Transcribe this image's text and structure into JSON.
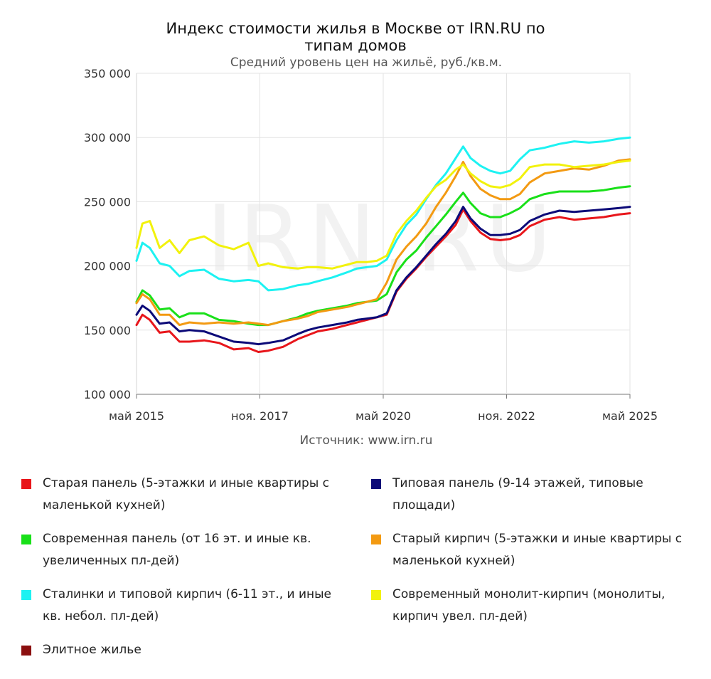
{
  "chart_data": {
    "type": "line",
    "title_lines": [
      "Индекс стоимости жилья в Москве от IRN.RU по",
      "типам домов"
    ],
    "subtitle": "Средний уровень цен на жильё, руб./кв.м.",
    "watermark": "IRN.RU",
    "source": "Источник: www.irn.ru",
    "ylim": [
      100000,
      350000
    ],
    "yticks": [
      100000,
      150000,
      200000,
      250000,
      300000,
      350000
    ],
    "ytick_labels": [
      "100 000",
      "150 000",
      "200 000",
      "250 000",
      "300 000",
      "350 000"
    ],
    "x_range": [
      2015.33,
      2025.33
    ],
    "xticks": [
      2015.33,
      2017.83,
      2020.33,
      2022.83,
      2025.33
    ],
    "xtick_labels": [
      "май 2015",
      "ноя. 2017",
      "май 2020",
      "ноя. 2022",
      "май 2025"
    ],
    "grid": true,
    "series": [
      {
        "name": "Старая панель (5-этажки и иные квартиры с маленькой кухней)",
        "color": "#e8161b",
        "x": [
          2015.33,
          2015.45,
          2015.6,
          2015.8,
          2016.0,
          2016.2,
          2016.4,
          2016.7,
          2017.0,
          2017.3,
          2017.6,
          2017.8,
          2018.0,
          2018.3,
          2018.6,
          2018.8,
          2019.0,
          2019.3,
          2019.6,
          2019.8,
          2020.0,
          2020.2,
          2020.4,
          2020.6,
          2020.8,
          2021.0,
          2021.2,
          2021.4,
          2021.6,
          2021.8,
          2021.95,
          2022.1,
          2022.3,
          2022.5,
          2022.7,
          2022.9,
          2023.1,
          2023.3,
          2023.6,
          2023.9,
          2024.2,
          2024.5,
          2024.8,
          2025.1,
          2025.33
        ],
        "y": [
          154000,
          162000,
          158000,
          148000,
          149000,
          141000,
          141000,
          142000,
          140000,
          135000,
          136000,
          133000,
          134000,
          137000,
          143000,
          146000,
          149000,
          151000,
          154000,
          156000,
          158000,
          160000,
          162000,
          180000,
          190000,
          198000,
          207000,
          215000,
          223000,
          232000,
          244000,
          235000,
          226000,
          221000,
          220000,
          221000,
          224000,
          231000,
          236000,
          238000,
          236000,
          237000,
          238000,
          240000,
          241000
        ]
      },
      {
        "name": "Типовая панель (9-14 этажей, типовые площади)",
        "color": "#0c0a78",
        "x": [
          2015.33,
          2015.45,
          2015.6,
          2015.8,
          2016.0,
          2016.2,
          2016.4,
          2016.7,
          2017.0,
          2017.3,
          2017.6,
          2017.8,
          2018.0,
          2018.3,
          2018.6,
          2018.8,
          2019.0,
          2019.3,
          2019.6,
          2019.8,
          2020.0,
          2020.2,
          2020.4,
          2020.6,
          2020.8,
          2021.0,
          2021.2,
          2021.4,
          2021.6,
          2021.8,
          2021.95,
          2022.1,
          2022.3,
          2022.5,
          2022.7,
          2022.9,
          2023.1,
          2023.3,
          2023.6,
          2023.9,
          2024.2,
          2024.5,
          2024.8,
          2025.1,
          2025.33
        ],
        "y": [
          162000,
          169000,
          165000,
          155000,
          156000,
          149000,
          150000,
          149000,
          145000,
          141000,
          140000,
          139000,
          140000,
          142000,
          147000,
          150000,
          152000,
          154000,
          156000,
          158000,
          159000,
          160000,
          163000,
          181000,
          191000,
          199000,
          208000,
          217000,
          225000,
          235000,
          246000,
          237000,
          229000,
          224000,
          224000,
          225000,
          228000,
          235000,
          240000,
          243000,
          242000,
          243000,
          244000,
          245000,
          246000
        ]
      },
      {
        "name": "Современная панель (от 16 эт. и иные кв. увеличенных пл-дей)",
        "color": "#19e019",
        "x": [
          2015.33,
          2015.45,
          2015.6,
          2015.8,
          2016.0,
          2016.2,
          2016.4,
          2016.7,
          2017.0,
          2017.3,
          2017.6,
          2017.8,
          2018.0,
          2018.3,
          2018.6,
          2018.8,
          2019.0,
          2019.3,
          2019.6,
          2019.8,
          2020.0,
          2020.2,
          2020.4,
          2020.6,
          2020.8,
          2021.0,
          2021.2,
          2021.4,
          2021.6,
          2021.8,
          2021.95,
          2022.1,
          2022.3,
          2022.5,
          2022.7,
          2022.9,
          2023.1,
          2023.3,
          2023.6,
          2023.9,
          2024.2,
          2024.5,
          2024.8,
          2025.1,
          2025.33
        ],
        "y": [
          172000,
          181000,
          177000,
          166000,
          167000,
          160000,
          163000,
          163000,
          158000,
          157000,
          155000,
          154000,
          154000,
          157000,
          160000,
          163000,
          165000,
          167000,
          169000,
          171000,
          172000,
          173000,
          178000,
          195000,
          205000,
          212000,
          222000,
          231000,
          240000,
          250000,
          257000,
          249000,
          241000,
          238000,
          238000,
          241000,
          245000,
          252000,
          256000,
          258000,
          258000,
          258000,
          259000,
          261000,
          262000
        ]
      },
      {
        "name": "Старый кирпич (5-этажки и иные квартиры с маленькой кухней)",
        "color": "#f39a12",
        "x": [
          2015.33,
          2015.45,
          2015.6,
          2015.8,
          2016.0,
          2016.2,
          2016.4,
          2016.7,
          2017.0,
          2017.3,
          2017.6,
          2017.8,
          2018.0,
          2018.3,
          2018.6,
          2018.8,
          2019.0,
          2019.3,
          2019.6,
          2019.8,
          2020.0,
          2020.2,
          2020.4,
          2020.6,
          2020.8,
          2021.0,
          2021.2,
          2021.4,
          2021.6,
          2021.8,
          2021.95,
          2022.1,
          2022.3,
          2022.5,
          2022.7,
          2022.9,
          2023.1,
          2023.3,
          2023.6,
          2023.9,
          2024.2,
          2024.5,
          2024.8,
          2025.1,
          2025.33
        ],
        "y": [
          171000,
          178000,
          174000,
          162000,
          162000,
          154000,
          156000,
          155000,
          156000,
          155000,
          156000,
          155000,
          154000,
          157000,
          159000,
          161000,
          164000,
          166000,
          168000,
          170000,
          172000,
          174000,
          187000,
          205000,
          215000,
          223000,
          233000,
          246000,
          257000,
          270000,
          281000,
          270000,
          260000,
          255000,
          252000,
          252000,
          256000,
          265000,
          272000,
          274000,
          276000,
          275000,
          278000,
          282000,
          283000
        ]
      },
      {
        "name": "Сталинки и типовой кирпич (6-11 эт., и иные кв. небол. пл-дей)",
        "color": "#1df2f2",
        "x": [
          2015.33,
          2015.45,
          2015.6,
          2015.8,
          2016.0,
          2016.2,
          2016.4,
          2016.7,
          2017.0,
          2017.3,
          2017.6,
          2017.8,
          2018.0,
          2018.3,
          2018.6,
          2018.8,
          2019.0,
          2019.3,
          2019.6,
          2019.8,
          2020.0,
          2020.2,
          2020.4,
          2020.6,
          2020.8,
          2021.0,
          2021.2,
          2021.4,
          2021.6,
          2021.8,
          2021.95,
          2022.1,
          2022.3,
          2022.5,
          2022.7,
          2022.9,
          2023.1,
          2023.3,
          2023.6,
          2023.9,
          2024.2,
          2024.5,
          2024.8,
          2025.1,
          2025.33
        ],
        "y": [
          204000,
          218000,
          214000,
          202000,
          200000,
          192000,
          196000,
          197000,
          190000,
          188000,
          189000,
          188000,
          181000,
          182000,
          185000,
          186000,
          188000,
          191000,
          195000,
          198000,
          199000,
          200000,
          205000,
          220000,
          232000,
          240000,
          252000,
          263000,
          272000,
          284000,
          293000,
          284000,
          278000,
          274000,
          272000,
          274000,
          283000,
          290000,
          292000,
          295000,
          297000,
          296000,
          297000,
          299000,
          300000
        ]
      },
      {
        "name": "Современный монолит-кирпич (монолиты, кирпич увел. пл-дей)",
        "color": "#f2f20c",
        "x": [
          2015.33,
          2015.45,
          2015.6,
          2015.8,
          2016.0,
          2016.2,
          2016.4,
          2016.7,
          2017.0,
          2017.3,
          2017.6,
          2017.8,
          2018.0,
          2018.3,
          2018.6,
          2018.8,
          2019.0,
          2019.3,
          2019.6,
          2019.8,
          2020.0,
          2020.2,
          2020.4,
          2020.6,
          2020.8,
          2021.0,
          2021.2,
          2021.4,
          2021.6,
          2021.8,
          2021.95,
          2022.1,
          2022.3,
          2022.5,
          2022.7,
          2022.9,
          2023.1,
          2023.3,
          2023.6,
          2023.9,
          2024.2,
          2024.5,
          2024.8,
          2025.1,
          2025.33
        ],
        "y": [
          214000,
          233000,
          235000,
          214000,
          220000,
          210000,
          220000,
          223000,
          216000,
          213000,
          218000,
          200000,
          202000,
          199000,
          198000,
          199000,
          199000,
          198000,
          201000,
          203000,
          203000,
          204000,
          208000,
          225000,
          235000,
          243000,
          253000,
          262000,
          267000,
          275000,
          279000,
          272000,
          266000,
          262000,
          261000,
          263000,
          268000,
          277000,
          279000,
          279000,
          277000,
          278000,
          279000,
          281000,
          282000
        ]
      },
      {
        "name": "Элитное жилье",
        "color": "#8b0f0f",
        "x": [],
        "y": []
      }
    ]
  }
}
